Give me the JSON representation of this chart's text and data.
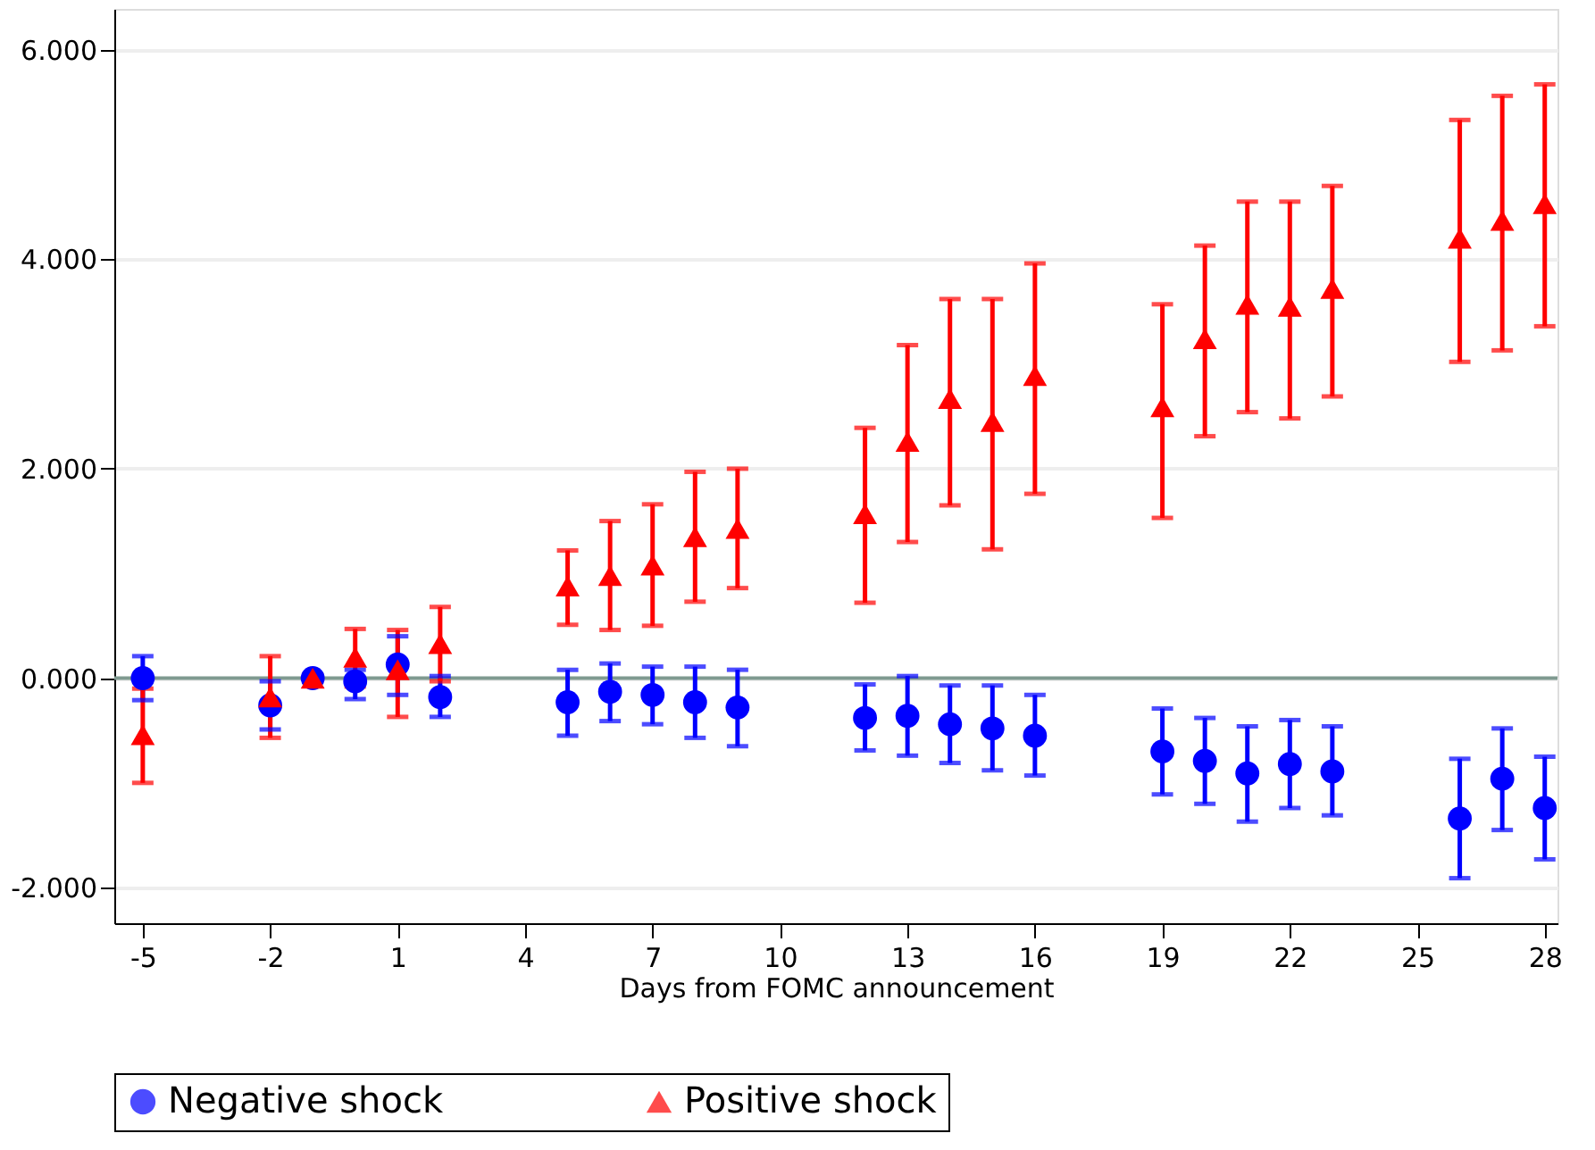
{
  "chart_data": {
    "type": "scatter",
    "xlabel": "Days from FOMC announcement",
    "x": [
      -5,
      -2,
      -1,
      0,
      1,
      2,
      5,
      6,
      7,
      8,
      9,
      12,
      13,
      14,
      15,
      16,
      19,
      20,
      21,
      22,
      23,
      26,
      27,
      28
    ],
    "series": [
      {
        "name": "Negative shock",
        "color": "#0000ff",
        "marker": "circle",
        "values": [
          0.0,
          -0.26,
          0.0,
          -0.03,
          0.13,
          -0.18,
          -0.23,
          -0.13,
          -0.16,
          -0.23,
          -0.28,
          -0.38,
          -0.36,
          -0.44,
          -0.48,
          -0.55,
          -0.7,
          -0.79,
          -0.91,
          -0.82,
          -0.89,
          -1.34,
          -0.96,
          -1.24
        ],
        "errors": [
          [
            -0.21,
            0.21
          ],
          [
            -0.49,
            -0.03
          ],
          [
            -0.03,
            0.03
          ],
          [
            -0.2,
            0.08
          ],
          [
            -0.16,
            0.4
          ],
          [
            -0.37,
            0.02
          ],
          [
            -0.55,
            0.08
          ],
          [
            -0.41,
            0.14
          ],
          [
            -0.44,
            0.11
          ],
          [
            -0.57,
            0.11
          ],
          [
            -0.65,
            0.08
          ],
          [
            -0.69,
            -0.06
          ],
          [
            -0.74,
            0.02
          ],
          [
            -0.81,
            -0.07
          ],
          [
            -0.88,
            -0.07
          ],
          [
            -0.93,
            -0.16
          ],
          [
            -1.11,
            -0.29
          ],
          [
            -1.2,
            -0.38
          ],
          [
            -1.37,
            -0.46
          ],
          [
            -1.24,
            -0.4
          ],
          [
            -1.31,
            -0.46
          ],
          [
            -1.91,
            -0.77
          ],
          [
            -1.45,
            -0.48
          ],
          [
            -1.73,
            -0.75
          ]
        ]
      },
      {
        "name": "Positive shock",
        "color": "#ff0000",
        "marker": "triangle",
        "values": [
          -0.54,
          -0.18,
          0.0,
          0.2,
          0.08,
          0.33,
          0.88,
          0.98,
          1.08,
          1.35,
          1.43,
          1.57,
          2.26,
          2.67,
          2.45,
          2.89,
          2.59,
          3.24,
          3.57,
          3.55,
          3.72,
          4.2,
          4.37,
          4.53
        ],
        "errors": [
          [
            -1.0,
            -0.1
          ],
          [
            -0.57,
            0.21
          ],
          [
            -0.03,
            0.03
          ],
          [
            -0.08,
            0.47
          ],
          [
            -0.37,
            0.46
          ],
          [
            -0.03,
            0.68
          ],
          [
            0.51,
            1.22
          ],
          [
            0.46,
            1.5
          ],
          [
            0.5,
            1.66
          ],
          [
            0.73,
            1.97
          ],
          [
            0.86,
            2.0
          ],
          [
            0.72,
            2.39
          ],
          [
            1.3,
            3.18
          ],
          [
            1.65,
            3.62
          ],
          [
            1.23,
            3.62
          ],
          [
            1.76,
            3.96
          ],
          [
            1.53,
            3.57
          ],
          [
            2.31,
            4.13
          ],
          [
            2.54,
            4.55
          ],
          [
            2.48,
            4.55
          ],
          [
            2.69,
            4.7
          ],
          [
            3.02,
            5.33
          ],
          [
            3.13,
            5.56
          ],
          [
            3.36,
            5.67
          ]
        ]
      }
    ],
    "xlim": [
      -5.67,
      28.3
    ],
    "xticks": [
      -5,
      -2,
      1,
      4,
      7,
      10,
      13,
      16,
      19,
      22,
      25,
      28
    ],
    "ylim": [
      -2.34,
      6.39
    ],
    "yticks": [
      {
        "value": -2,
        "label": "-2.000"
      },
      {
        "value": 0,
        "label": "0.000"
      },
      {
        "value": 2,
        "label": "2.000"
      },
      {
        "value": 4,
        "label": "4.000"
      },
      {
        "value": 6,
        "label": "6.000"
      }
    ],
    "ref_lines": [
      {
        "axis": "y",
        "value": 0,
        "label": null,
        "color": "#7f9a90"
      }
    ],
    "grid": "y",
    "legend": "bottom"
  }
}
